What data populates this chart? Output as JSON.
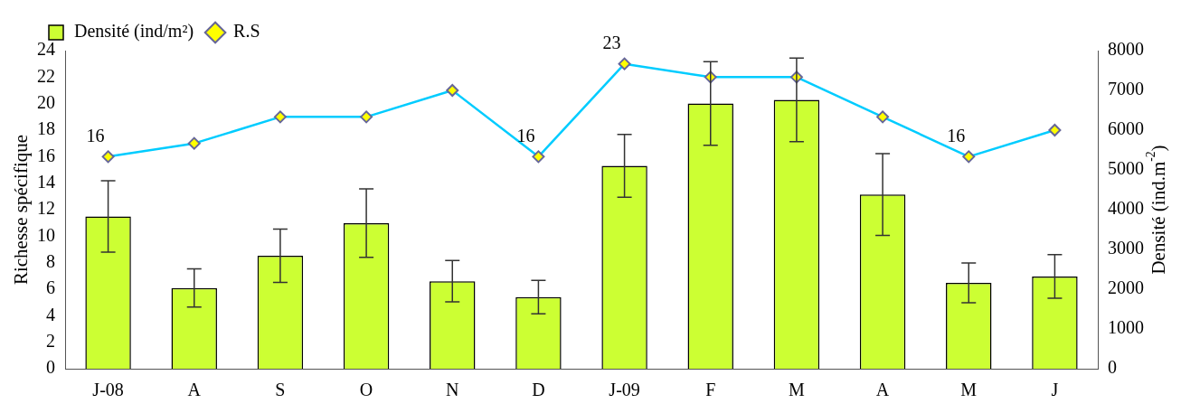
{
  "chart_data": {
    "type": "bar",
    "categories": [
      "J-08",
      "A",
      "S",
      "O",
      "N",
      "D",
      "J-09",
      "F",
      "M",
      "A",
      "M",
      "J"
    ],
    "series": [
      {
        "name": "Densité (ind/m²)",
        "axis": "y2",
        "color": "#ccff33",
        "values": [
          3830,
          2030,
          2840,
          3660,
          2200,
          1800,
          5100,
          6670,
          6760,
          4380,
          2160,
          2320
        ],
        "errors": [
          900,
          480,
          670,
          860,
          520,
          420,
          790,
          1050,
          1050,
          1030,
          500,
          550
        ]
      },
      {
        "name": "R.S",
        "type": "line",
        "color": "#00ccff",
        "marker": "diamond",
        "values": [
          16,
          17,
          19,
          19,
          21,
          16,
          23,
          22,
          22,
          19,
          16,
          18
        ],
        "value_labels": [
          "16",
          null,
          null,
          null,
          null,
          "16",
          "23",
          null,
          null,
          null,
          "16",
          null
        ]
      }
    ],
    "ylabel": "Richesse spécifique",
    "y2label": "Densité (ind.m$^{-2}$)",
    "ylim": [
      0,
      24
    ],
    "yticks": [
      0,
      2,
      4,
      6,
      8,
      10,
      12,
      14,
      16,
      18,
      20,
      22,
      24
    ],
    "y2lim": [
      0,
      8000
    ],
    "y2ticks": [
      0,
      1000,
      2000,
      3000,
      4000,
      5000,
      6000,
      7000,
      8000
    ],
    "grid": false,
    "legend": "top left"
  }
}
